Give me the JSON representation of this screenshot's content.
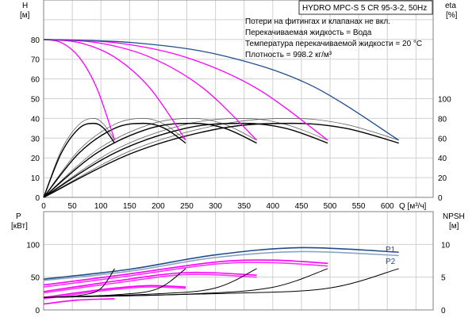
{
  "chart_data": [
    {
      "type": "line",
      "title": "HYDRO MPC-S 5 CR 95-3-2, 50Hz",
      "notes": [
        "Потери на фитингах и клапанах не вкл.",
        "Перекачиваемая жидкость = Вода",
        "Температура перекачиваемой жидкости = 20 °C",
        "Плотность = 998.2 кг/м³"
      ],
      "xlabel": "Q [м³/ч]",
      "ylabel_left": {
        "name": "H",
        "unit": "[м]"
      },
      "ylabel_right": {
        "name": "eta",
        "unit": "[%]"
      },
      "xlim": [
        0,
        680
      ],
      "ylim_left": [
        0,
        100
      ],
      "ylim_right": [
        0,
        200
      ],
      "x_ticks": [
        "0",
        "50",
        "100",
        "150",
        "200",
        "250",
        "300",
        "350",
        "400",
        "450",
        "500",
        "550",
        "600"
      ],
      "y_ticks_left": [
        "0",
        "10",
        "20",
        "30",
        "40",
        "50",
        "60",
        "70",
        "80"
      ],
      "y_ticks_right": [
        "0",
        "20",
        "40",
        "60",
        "80",
        "100"
      ],
      "grid": true,
      "head_series": [
        {
          "pumps": 1,
          "color": "#ff00ff",
          "points": [
            [
              0,
              80
            ],
            [
              31,
              78.4
            ],
            [
              62,
              71
            ],
            [
              93,
              55.2
            ],
            [
              124,
              29
            ]
          ]
        },
        {
          "pumps": 2,
          "color": "#ff00ff",
          "points": [
            [
              0,
              80
            ],
            [
              62,
              78.4
            ],
            [
              124,
              71
            ],
            [
              186,
              55.2
            ],
            [
              248,
              29
            ]
          ]
        },
        {
          "pumps": 3,
          "color": "#ff00ff",
          "points": [
            [
              0,
              80
            ],
            [
              93,
              78.4
            ],
            [
              186,
              71
            ],
            [
              279,
              55.2
            ],
            [
              372,
              29
            ]
          ]
        },
        {
          "pumps": 4,
          "color": "#ff00ff",
          "points": [
            [
              0,
              80
            ],
            [
              124,
              78.4
            ],
            [
              248,
              71
            ],
            [
              372,
              55.2
            ],
            [
              496,
              29
            ]
          ]
        },
        {
          "pumps": 5,
          "color": "#1f4e8c",
          "points": [
            [
              0,
              80
            ],
            [
              155,
              78.4
            ],
            [
              310,
              72
            ],
            [
              465,
              57
            ],
            [
              620,
              29
            ]
          ]
        }
      ],
      "eta_series": [
        {
          "pumps": 1,
          "points": [
            [
              0,
              0
            ],
            [
              31,
              48
            ],
            [
              62,
              74
            ],
            [
              87,
              80
            ],
            [
              105,
              74
            ],
            [
              124,
              58
            ]
          ]
        },
        {
          "pumps": 2,
          "points": [
            [
              0,
              0
            ],
            [
              62,
              48
            ],
            [
              124,
              74
            ],
            [
              174,
              80
            ],
            [
              211,
              74
            ],
            [
              248,
              58
            ]
          ]
        },
        {
          "pumps": 3,
          "points": [
            [
              0,
              0
            ],
            [
              93,
              48
            ],
            [
              186,
              74
            ],
            [
              260,
              80
            ],
            [
              316,
              74
            ],
            [
              372,
              58
            ]
          ]
        },
        {
          "pumps": 4,
          "points": [
            [
              0,
              0
            ],
            [
              124,
              48
            ],
            [
              248,
              74
            ],
            [
              347,
              80
            ],
            [
              422,
              74
            ],
            [
              496,
              58
            ]
          ]
        },
        {
          "pumps": 5,
          "points": [
            [
              0,
              0
            ],
            [
              155,
              48
            ],
            [
              310,
              74
            ],
            [
              434,
              80
            ],
            [
              527,
              74
            ],
            [
              620,
              58
            ]
          ]
        }
      ],
      "eta_series_thick": [
        {
          "pumps": 1,
          "points": [
            [
              0,
              0
            ],
            [
              31,
              45
            ],
            [
              62,
              70
            ],
            [
              87,
              75
            ],
            [
              105,
              70
            ],
            [
              124,
              55
            ]
          ]
        },
        {
          "pumps": 2,
          "points": [
            [
              0,
              0
            ],
            [
              62,
              45
            ],
            [
              124,
              70
            ],
            [
              174,
              75
            ],
            [
              211,
              70
            ],
            [
              248,
              55
            ]
          ]
        },
        {
          "pumps": 3,
          "points": [
            [
              0,
              0
            ],
            [
              93,
              45
            ],
            [
              186,
              70
            ],
            [
              260,
              75
            ],
            [
              316,
              70
            ],
            [
              372,
              55
            ]
          ]
        },
        {
          "pumps": 4,
          "points": [
            [
              0,
              0
            ],
            [
              124,
              45
            ],
            [
              248,
              70
            ],
            [
              347,
              75
            ],
            [
              422,
              70
            ],
            [
              496,
              55
            ]
          ]
        },
        {
          "pumps": 5,
          "points": [
            [
              0,
              0
            ],
            [
              155,
              45
            ],
            [
              310,
              70
            ],
            [
              434,
              75
            ],
            [
              527,
              70
            ],
            [
              620,
              55
            ]
          ]
        }
      ]
    },
    {
      "type": "line",
      "xlabel": "Q [м³/ч]",
      "ylabel_left": {
        "name": "P",
        "unit": "[кВт]"
      },
      "ylabel_right": {
        "name": "NPSH",
        "unit": "[м]"
      },
      "xlim": [
        0,
        680
      ],
      "ylim_left": [
        0,
        150
      ],
      "ylim_right": [
        0,
        15
      ],
      "y_ticks_left": [
        "0",
        "50",
        "100"
      ],
      "y_ticks_right": [
        "0",
        "5",
        "10"
      ],
      "grid": true,
      "power_series": [
        {
          "name": "P1",
          "color": "#1f4e8c",
          "points": [
            [
              0,
              47
            ],
            [
              150,
              62
            ],
            [
              300,
              84
            ],
            [
              450,
              95
            ],
            [
              620,
              88
            ]
          ]
        },
        {
          "name": "P2",
          "color": "#8fa3bf",
          "points": [
            [
              0,
              45
            ],
            [
              150,
              59
            ],
            [
              300,
              80
            ],
            [
              450,
              89
            ],
            [
              620,
              83
            ]
          ]
        },
        {
          "color": "#ff00ff",
          "points": [
            [
              0,
              38
            ],
            [
              150,
              55
            ],
            [
              300,
              73
            ],
            [
              400,
              76
            ],
            [
              496,
              71
            ]
          ]
        },
        {
          "color": "#ff33ff",
          "points": [
            [
              0,
              35
            ],
            [
              150,
              52
            ],
            [
              300,
              70
            ],
            [
              400,
              72
            ],
            [
              496,
              67
            ]
          ]
        },
        {
          "color": "#ff00ff",
          "points": [
            [
              0,
              28
            ],
            [
              125,
              44
            ],
            [
              250,
              57
            ],
            [
              372,
              53
            ]
          ]
        },
        {
          "color": "#ff33ff",
          "points": [
            [
              0,
              26
            ],
            [
              125,
              41
            ],
            [
              250,
              54
            ],
            [
              372,
              50
            ]
          ]
        },
        {
          "color": "#ff00ff",
          "points": [
            [
              0,
              19
            ],
            [
              100,
              31
            ],
            [
              180,
              37
            ],
            [
              248,
              35
            ]
          ]
        },
        {
          "color": "#ff33ff",
          "points": [
            [
              0,
              17
            ],
            [
              100,
              29
            ],
            [
              180,
              35
            ],
            [
              248,
              33
            ]
          ]
        },
        {
          "color": "#ff00ff",
          "points": [
            [
              0,
              9
            ],
            [
              60,
              15
            ],
            [
              124,
              17
            ]
          ]
        }
      ],
      "npsh_series": [
        {
          "pumps": 1,
          "points": [
            [
              0,
              1.9
            ],
            [
              62,
              2.2
            ],
            [
              99,
              3.2
            ],
            [
              124,
              6.3
            ]
          ]
        },
        {
          "pumps": 2,
          "points": [
            [
              0,
              1.9
            ],
            [
              124,
              2.3
            ],
            [
              198,
              3.2
            ],
            [
              248,
              6.3
            ]
          ]
        },
        {
          "pumps": 3,
          "points": [
            [
              0,
              1.9
            ],
            [
              186,
              2.4
            ],
            [
              298,
              3.3
            ],
            [
              372,
              6.3
            ]
          ]
        },
        {
          "pumps": 4,
          "points": [
            [
              0,
              1.9
            ],
            [
              248,
              2.4
            ],
            [
              397,
              3.4
            ],
            [
              496,
              6.3
            ]
          ]
        },
        {
          "pumps": 5,
          "points": [
            [
              0,
              1.9
            ],
            [
              310,
              2.5
            ],
            [
              496,
              3.3
            ],
            [
              620,
              6.3
            ]
          ]
        }
      ]
    }
  ]
}
